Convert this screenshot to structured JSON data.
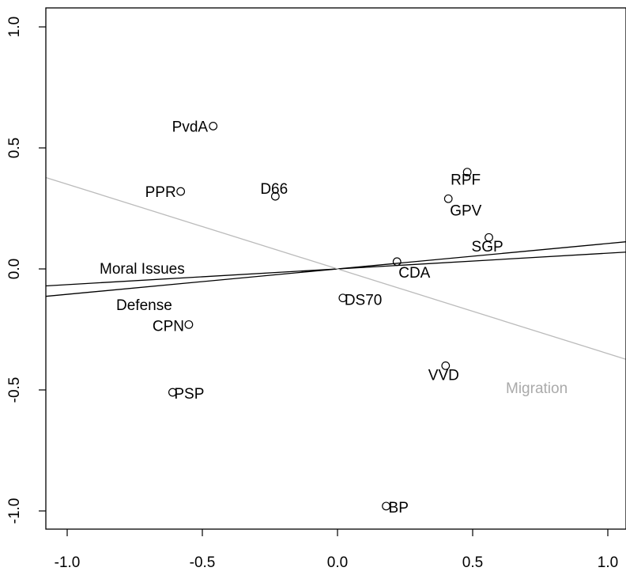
{
  "chart_data": {
    "type": "scatter",
    "title": "",
    "xlabel": "",
    "ylabel": "",
    "xlim": [
      -1.0,
      1.0
    ],
    "ylim": [
      -1.0,
      1.0
    ],
    "grid": false,
    "x_ticks": [
      -1.0,
      -0.5,
      0.0,
      0.5,
      1.0
    ],
    "x_tick_labels": [
      "-1.0",
      "-0.5",
      "0.0",
      "0.5",
      "1.0"
    ],
    "y_ticks": [
      -1.0,
      -0.5,
      0.0,
      0.5,
      1.0
    ],
    "y_tick_labels": [
      "-1.0",
      "-0.5",
      "0.0",
      "0.5",
      "1.0"
    ],
    "points": [
      {
        "label": "PvdA",
        "x": -0.46,
        "y": 0.59
      },
      {
        "label": "PPR",
        "x": -0.58,
        "y": 0.32
      },
      {
        "label": "D66",
        "x": -0.23,
        "y": 0.3
      },
      {
        "label": "RPF",
        "x": 0.48,
        "y": 0.4
      },
      {
        "label": "GPV",
        "x": 0.41,
        "y": 0.29
      },
      {
        "label": "SGP",
        "x": 0.56,
        "y": 0.13
      },
      {
        "label": "CDA",
        "x": 0.22,
        "y": 0.03
      },
      {
        "label": "DS70",
        "x": 0.02,
        "y": -0.12
      },
      {
        "label": "CPN",
        "x": -0.55,
        "y": -0.23
      },
      {
        "label": "VVD",
        "x": 0.4,
        "y": -0.4
      },
      {
        "label": "PSP",
        "x": -0.61,
        "y": -0.51
      },
      {
        "label": "BP",
        "x": 0.18,
        "y": -0.98
      }
    ],
    "lines": [
      {
        "name": "Moral Issues",
        "slope": 0.065,
        "color": "#000000"
      },
      {
        "name": "Defense",
        "slope": 0.105,
        "color": "#000000"
      },
      {
        "name": "Migration",
        "slope": -0.35,
        "color": "#bbbbbb"
      }
    ]
  }
}
